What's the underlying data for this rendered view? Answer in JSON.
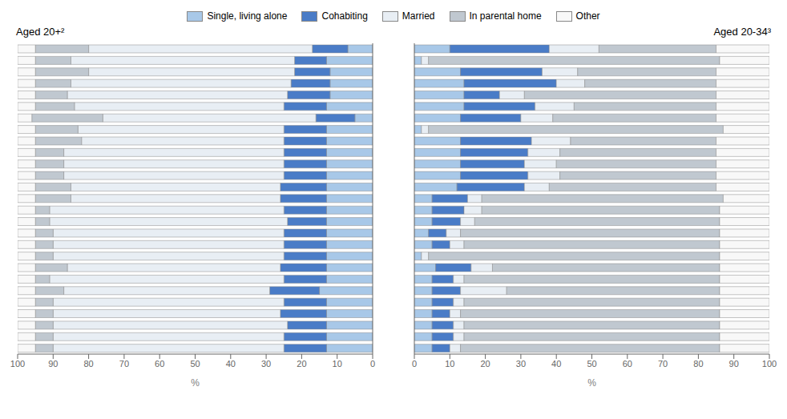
{
  "chart_data": [
    {
      "type": "bar",
      "orientation": "horizontal",
      "stacked": true,
      "title": "Aged 20+²",
      "x_label": "%",
      "xlim": [
        100,
        0
      ],
      "xticks": [
        0,
        10,
        20,
        30,
        40,
        50,
        60,
        70,
        80,
        90,
        100
      ],
      "grid": false,
      "legend": "top",
      "tick_labels": "x",
      "categories": [
        null,
        null,
        null,
        null,
        null,
        null,
        null,
        null,
        null,
        null,
        null,
        null,
        null,
        null,
        null,
        null,
        null,
        null,
        null,
        null,
        null,
        null,
        null,
        null,
        null,
        null,
        null
      ],
      "series": [
        {
          "name": "Single, living alone",
          "color": "#a8c8e8",
          "values": [
            7,
            13,
            12,
            12,
            12,
            13,
            5,
            13,
            13,
            13,
            13,
            13,
            13,
            13,
            13,
            13,
            13,
            13,
            13,
            13,
            13,
            15,
            13,
            13,
            13,
            13,
            13
          ]
        },
        {
          "name": "Cohabiting",
          "color": "#4a7cc7",
          "values": [
            10,
            9,
            10,
            11,
            12,
            12,
            11,
            12,
            12,
            12,
            12,
            12,
            13,
            13,
            12,
            11,
            12,
            12,
            12,
            13,
            12,
            14,
            12,
            13,
            11,
            12,
            12
          ]
        },
        {
          "name": "Married",
          "color": "#e8eef4",
          "values": [
            63,
            63,
            58,
            62,
            62,
            59,
            60,
            58,
            57,
            62,
            62,
            62,
            59,
            59,
            66,
            67,
            65,
            65,
            65,
            60,
            66,
            58,
            65,
            64,
            66,
            65,
            65
          ]
        },
        {
          "name": "In parental home",
          "color": "#c0c8d0",
          "values": [
            15,
            10,
            15,
            10,
            9,
            11,
            20,
            12,
            13,
            8,
            8,
            8,
            10,
            10,
            4,
            4,
            5,
            5,
            5,
            9,
            4,
            8,
            5,
            5,
            5,
            5,
            5
          ]
        },
        {
          "name": "Other",
          "color": "#f8f8f8",
          "values": [
            5,
            5,
            5,
            5,
            5,
            5,
            4,
            5,
            5,
            5,
            5,
            5,
            5,
            5,
            5,
            5,
            5,
            5,
            5,
            5,
            5,
            5,
            5,
            5,
            5,
            5,
            5
          ]
        }
      ]
    },
    {
      "type": "bar",
      "orientation": "horizontal",
      "stacked": true,
      "title": "Aged 20-34³",
      "x_label": "%",
      "xlim": [
        0,
        100
      ],
      "xticks": [
        0,
        10,
        20,
        30,
        40,
        50,
        60,
        70,
        80,
        90,
        100
      ],
      "grid": false,
      "tick_labels": "x",
      "categories": [
        null,
        null,
        null,
        null,
        null,
        null,
        null,
        null,
        null,
        null,
        null,
        null,
        null,
        null,
        null,
        null,
        null,
        null,
        null,
        null,
        null,
        null,
        null,
        null,
        null,
        null,
        null
      ],
      "series": [
        {
          "name": "Single, living alone",
          "color": "#a8c8e8",
          "values": [
            10,
            2,
            13,
            14,
            14,
            14,
            13,
            2,
            13,
            13,
            13,
            13,
            12,
            5,
            5,
            5,
            4,
            5,
            2,
            6,
            5,
            5,
            5,
            5,
            5,
            5,
            5
          ]
        },
        {
          "name": "Cohabiting",
          "color": "#4a7cc7",
          "values": [
            28,
            0,
            23,
            26,
            10,
            20,
            17,
            0,
            20,
            19,
            18,
            19,
            19,
            10,
            9,
            8,
            5,
            5,
            0,
            10,
            6,
            8,
            6,
            5,
            6,
            6,
            5
          ]
        },
        {
          "name": "Married",
          "color": "#e8eef4",
          "values": [
            14,
            2,
            10,
            8,
            7,
            11,
            9,
            2,
            11,
            9,
            9,
            9,
            7,
            4,
            5,
            4,
            4,
            4,
            2,
            6,
            3,
            13,
            3,
            3,
            3,
            3,
            3
          ]
        },
        {
          "name": "In parental home",
          "color": "#c0c8d0",
          "values": [
            33,
            82,
            39,
            37,
            54,
            40,
            46,
            83,
            41,
            44,
            45,
            44,
            47,
            68,
            67,
            69,
            73,
            72,
            82,
            64,
            72,
            60,
            72,
            73,
            72,
            72,
            73
          ]
        },
        {
          "name": "Other",
          "color": "#f8f8f8",
          "values": [
            15,
            14,
            15,
            15,
            15,
            15,
            15,
            13,
            15,
            15,
            15,
            15,
            15,
            13,
            14,
            14,
            14,
            14,
            14,
            14,
            14,
            14,
            14,
            14,
            14,
            14,
            14
          ]
        }
      ]
    }
  ]
}
